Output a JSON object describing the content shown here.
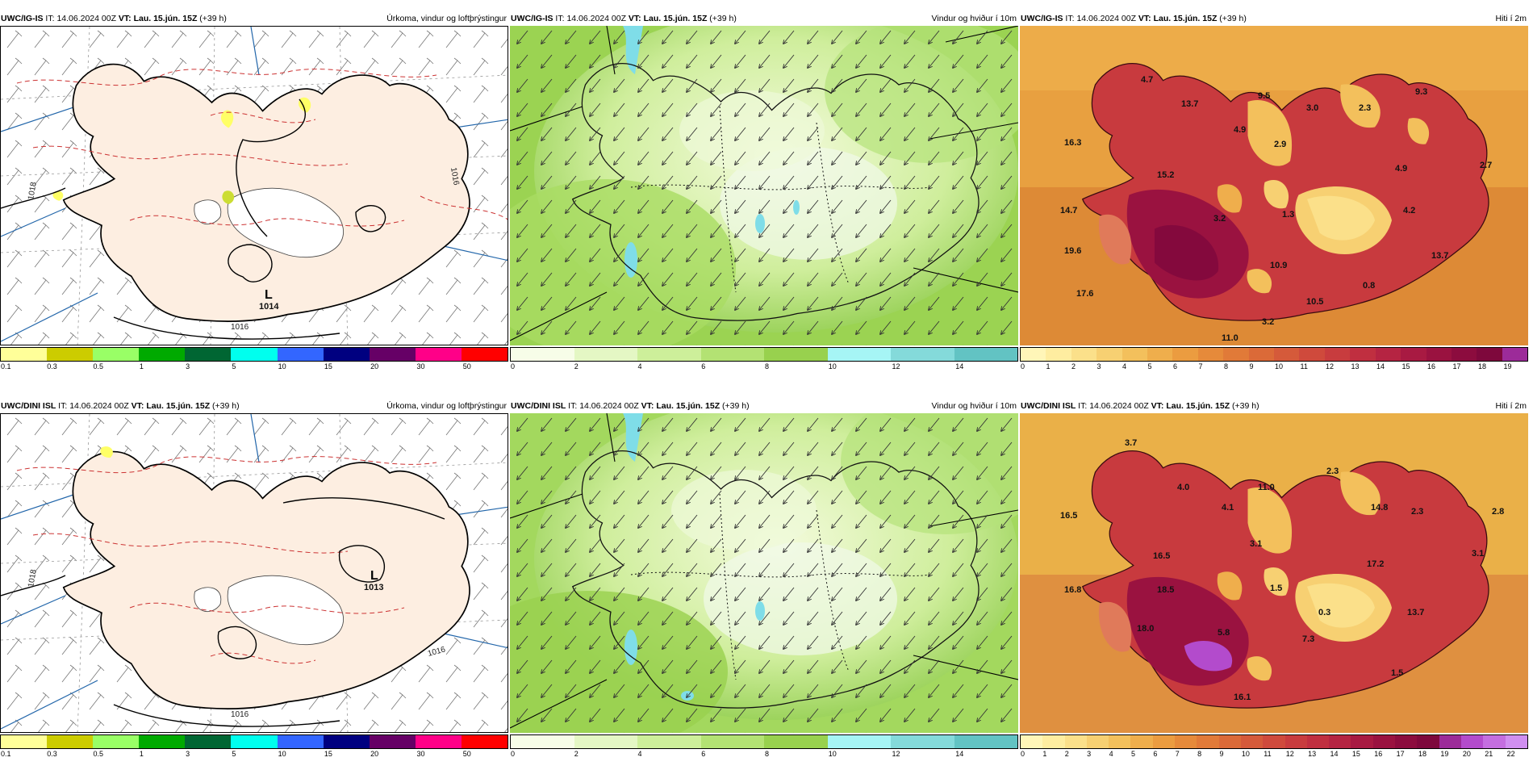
{
  "rows": [
    {
      "model": "UWC/IG-IS",
      "it_label": "IT:",
      "it_value": "14.06.2024 00Z",
      "vt_label": "VT:",
      "vt_value": "Lau. 15.jún. 15Z",
      "lead": "(+39 h)",
      "precip_title": "Úrkoma, vindur og loftþrýstingur",
      "wind_title": "Vindur og hviður í 10m",
      "temp_title": "Hiti í 2m",
      "isobars": [
        "1014",
        "1016",
        "1018",
        "1016"
      ],
      "low_symbol": "L",
      "temp_labels": [
        "4.7",
        "13.7",
        "9.5",
        "3.0",
        "2.3",
        "9.3",
        "16.3",
        "4.9",
        "2.9",
        "4.9",
        "2.7",
        "15.2",
        "14.7",
        "3.2",
        "1.3",
        "4.2",
        "19.6",
        "10.9",
        "13.7",
        "0.8",
        "17.6",
        "10.5",
        "3.2",
        "11.0"
      ],
      "temp_ticks": [
        "0",
        "1",
        "2",
        "3",
        "4",
        "5",
        "6",
        "7",
        "8",
        "9",
        "10",
        "11",
        "12",
        "13",
        "14",
        "15",
        "16",
        "17",
        "18",
        "19"
      ]
    },
    {
      "model": "UWC/DINI ISL",
      "it_label": "IT:",
      "it_value": "14.06.2024 00Z",
      "vt_label": "VT:",
      "vt_value": "Lau. 15.jún. 15Z",
      "lead": "(+39 h)",
      "precip_title": "Úrkoma, vindur og loftþrýstingur",
      "wind_title": "Vindur og hviður í 10m",
      "temp_title": "Hiti í 2m",
      "isobars": [
        "1013",
        "1016",
        "1018",
        "1016"
      ],
      "low_symbol": "L",
      "temp_labels": [
        "3.7",
        "4.0",
        "11.0",
        "2.3",
        "16.5",
        "4.1",
        "14.8",
        "2.3",
        "2.8",
        "3.1",
        "3.1",
        "16.5",
        "17.2",
        "16.8",
        "18.5",
        "1.5",
        "0.3",
        "13.7",
        "18.0",
        "5.8",
        "7.3",
        "1.5",
        "16.1"
      ],
      "temp_ticks": [
        "0",
        "1",
        "2",
        "3",
        "4",
        "5",
        "6",
        "7",
        "8",
        "9",
        "10",
        "11",
        "12",
        "13",
        "14",
        "15",
        "16",
        "17",
        "18",
        "19",
        "20",
        "21",
        "22"
      ]
    }
  ],
  "precip_scale": {
    "ticks": [
      "0.1",
      "0.3",
      "0.5",
      "1",
      "3",
      "5",
      "10",
      "15",
      "20",
      "30",
      "50"
    ],
    "colors": [
      "#ffff99",
      "#cccc00",
      "#99ff66",
      "#00aa00",
      "#006633",
      "#00ffee",
      "#3366ff",
      "#000080",
      "#660066",
      "#ff0088",
      "#ff0000"
    ]
  },
  "wind_scale": {
    "ticks": [
      "0",
      "2",
      "4",
      "6",
      "8",
      "10",
      "12",
      "14"
    ],
    "colors": [
      "#f7fde8",
      "#e4f7c4",
      "#cdef9a",
      "#b3e273",
      "#98d14e",
      "#a6f5f5",
      "#84dada",
      "#62c3c3"
    ]
  },
  "temp_colors": [
    "#fff6b8",
    "#feeda0",
    "#fbe08a",
    "#f7d072",
    "#f3c05c",
    "#efae4c",
    "#eb9c40",
    "#e68a3a",
    "#e17a38",
    "#db6a38",
    "#d55a3a",
    "#cf4a3c",
    "#c83c3e",
    "#c02f40",
    "#b52442",
    "#a81a42",
    "#9a1240",
    "#8c0c3e",
    "#7e083c",
    "#9c2b99",
    "#b34bcc",
    "#c46ee0",
    "#d08ff0"
  ]
}
